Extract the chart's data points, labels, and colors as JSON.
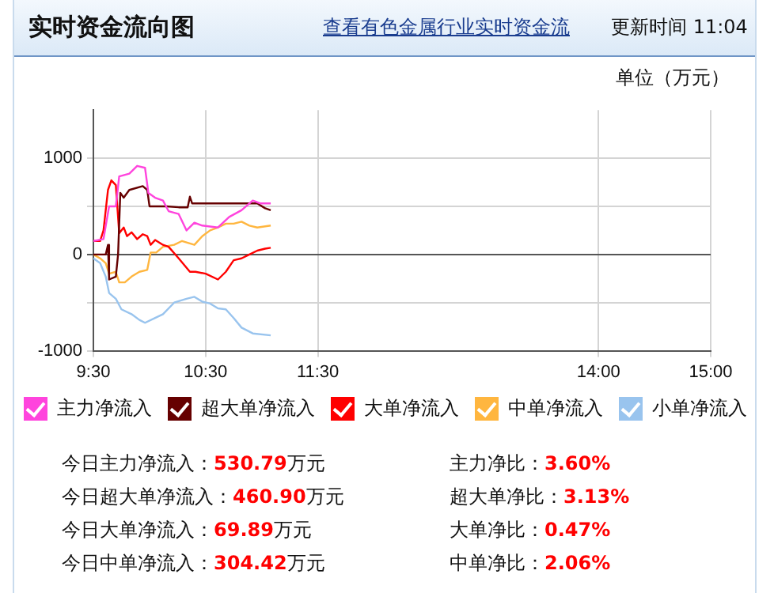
{
  "chart_data": {
    "type": "line",
    "title": "实时资金流向图",
    "ylabel": "单位（万元）",
    "annotations": [
      "查看有色金属行业实时资金流",
      "更新时间 11:04",
      "今日主力净流入：530.79万元",
      "主力净比：3.60%",
      "今日超大单净流入：460.90万元",
      "超大单净比：3.13%",
      "今日大单净流入：69.89万元",
      "大单净比：0.47%",
      "今日中单净流入：304.42万元",
      "中单净比：2.06%"
    ],
    "xlim": [
      9.5,
      15
    ],
    "xticks": [
      {
        "value": 9.5,
        "label": "9:30"
      },
      {
        "value": 10.5,
        "label": "10:30"
      },
      {
        "value": 11.5,
        "label": "11:30"
      },
      {
        "value": 14,
        "label": "14:00"
      },
      {
        "value": 15,
        "label": "15:00"
      }
    ],
    "ylim": [
      -1000,
      1500
    ],
    "yticks": [
      -1000,
      {
        "value": -500,
        "label": null
      },
      0,
      {
        "value": 500,
        "label": null
      },
      1000
    ],
    "grid": true,
    "legend": "bottom",
    "marker": "none",
    "line_style": "solid",
    "series": [
      {
        "name": "主力净流入",
        "color": "#ff44dd",
        "x": [
          9.5,
          9.59,
          9.64,
          9.7,
          9.73,
          9.82,
          9.89,
          9.96,
          9.99,
          10.05,
          10.12,
          10.17,
          10.26,
          10.33,
          10.4,
          10.47,
          10.61,
          10.71,
          10.82,
          10.92,
          10.99,
          11.08
        ],
        "values": [
          140,
          160,
          500,
          500,
          810,
          840,
          920,
          900,
          640,
          590,
          560,
          450,
          420,
          250,
          330,
          300,
          280,
          390,
          460,
          560,
          530,
          530
        ]
      },
      {
        "name": "超大单净流入",
        "color": "#660000",
        "x": [
          9.5,
          9.61,
          9.63,
          9.64,
          9.7,
          9.72,
          9.74,
          9.77,
          9.82,
          9.94,
          9.98,
          10,
          10.15,
          10.26,
          10.34,
          10.36,
          10.38,
          10.61,
          10.96,
          11.03,
          11.08
        ],
        "values": [
          0,
          0,
          100,
          -260,
          -230,
          0,
          640,
          590,
          670,
          710,
          670,
          500,
          500,
          490,
          490,
          600,
          530,
          530,
          530,
          480,
          460
        ]
      },
      {
        "name": "大单净流入",
        "color": "#ff0000",
        "x": [
          9.5,
          9.56,
          9.59,
          9.63,
          9.66,
          9.7,
          9.73,
          9.77,
          9.8,
          9.84,
          9.89,
          9.94,
          9.98,
          10.01,
          10.05,
          10.12,
          10.17,
          10.26,
          10.36,
          10.41,
          10.5,
          10.61,
          10.68,
          10.75,
          10.82,
          10.89,
          10.96,
          11.03,
          11.08
        ],
        "values": [
          140,
          140,
          250,
          670,
          770,
          720,
          220,
          280,
          190,
          230,
          160,
          210,
          190,
          100,
          150,
          100,
          80,
          -40,
          -180,
          -180,
          -200,
          -260,
          -180,
          -60,
          -40,
          0,
          40,
          60,
          70
        ]
      },
      {
        "name": "中单净流入",
        "color": "#ffb63f",
        "x": [
          9.5,
          9.56,
          9.61,
          9.64,
          9.7,
          9.73,
          9.78,
          9.84,
          9.91,
          9.98,
          10.01,
          10.06,
          10.12,
          10.22,
          10.29,
          10.4,
          10.47,
          10.54,
          10.61,
          10.68,
          10.75,
          10.82,
          10.89,
          10.96,
          11.08
        ],
        "values": [
          0,
          -40,
          -90,
          -200,
          -180,
          -290,
          -290,
          -230,
          -180,
          -160,
          20,
          20,
          80,
          100,
          140,
          100,
          190,
          250,
          280,
          320,
          320,
          340,
          300,
          280,
          300
        ]
      },
      {
        "name": "小单净流入",
        "color": "#99c4ee",
        "x": [
          9.5,
          9.56,
          9.61,
          9.64,
          9.7,
          9.75,
          9.84,
          9.91,
          9.96,
          10.05,
          10.12,
          10.22,
          10.33,
          10.4,
          10.47,
          10.54,
          10.61,
          10.68,
          10.75,
          10.82,
          10.92,
          11.08
        ],
        "values": [
          -40,
          -90,
          -230,
          -400,
          -460,
          -570,
          -620,
          -680,
          -710,
          -660,
          -620,
          -500,
          -460,
          -440,
          -490,
          -510,
          -560,
          -570,
          -660,
          -760,
          -820,
          -840
        ]
      }
    ]
  }
}
